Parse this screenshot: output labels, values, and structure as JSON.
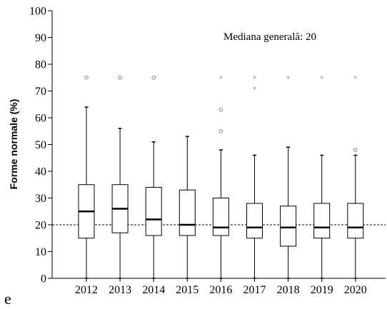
{
  "chart_data": {
    "type": "boxplot",
    "ylabel": "Forme normale (%)",
    "xlabel": "",
    "ylim": [
      0,
      100
    ],
    "yticks": [
      0,
      10,
      20,
      30,
      40,
      50,
      60,
      70,
      80,
      90,
      100
    ],
    "grid": false,
    "categories": [
      "2012",
      "2013",
      "2014",
      "2015",
      "2016",
      "2017",
      "2018",
      "2019",
      "2020"
    ],
    "boxes": [
      {
        "year": "2012",
        "min": 0,
        "q1": 15,
        "median": 25,
        "q3": 35,
        "max": 64,
        "outliers": [
          75
        ],
        "extremes": []
      },
      {
        "year": "2013",
        "min": 0,
        "q1": 17,
        "median": 26,
        "q3": 35,
        "max": 56,
        "outliers": [
          75
        ],
        "extremes": []
      },
      {
        "year": "2014",
        "min": 0,
        "q1": 16,
        "median": 22,
        "q3": 34,
        "max": 51,
        "outliers": [
          75
        ],
        "extremes": []
      },
      {
        "year": "2015",
        "min": 0,
        "q1": 16,
        "median": 20,
        "q3": 33,
        "max": 53,
        "outliers": [],
        "extremes": []
      },
      {
        "year": "2016",
        "min": 0,
        "q1": 16,
        "median": 19,
        "q3": 30,
        "max": 48,
        "outliers": [
          55,
          63
        ],
        "extremes": [
          75
        ]
      },
      {
        "year": "2017",
        "min": 0,
        "q1": 15,
        "median": 19,
        "q3": 28,
        "max": 46,
        "outliers": [],
        "extremes": [
          71,
          75
        ]
      },
      {
        "year": "2018",
        "min": 0,
        "q1": 12,
        "median": 19,
        "q3": 27,
        "max": 49,
        "outliers": [],
        "extremes": [
          75
        ]
      },
      {
        "year": "2019",
        "min": 0,
        "q1": 15,
        "median": 19,
        "q3": 28,
        "max": 46,
        "outliers": [],
        "extremes": [
          75
        ]
      },
      {
        "year": "2020",
        "min": 0,
        "q1": 15,
        "median": 19,
        "q3": 28,
        "max": 46,
        "outliers": [
          48
        ],
        "extremes": [
          75
        ]
      }
    ],
    "reference_line": {
      "value": 20,
      "style": "dashed"
    },
    "annotation": "Mediana generală: 20",
    "panel_label": "e"
  }
}
